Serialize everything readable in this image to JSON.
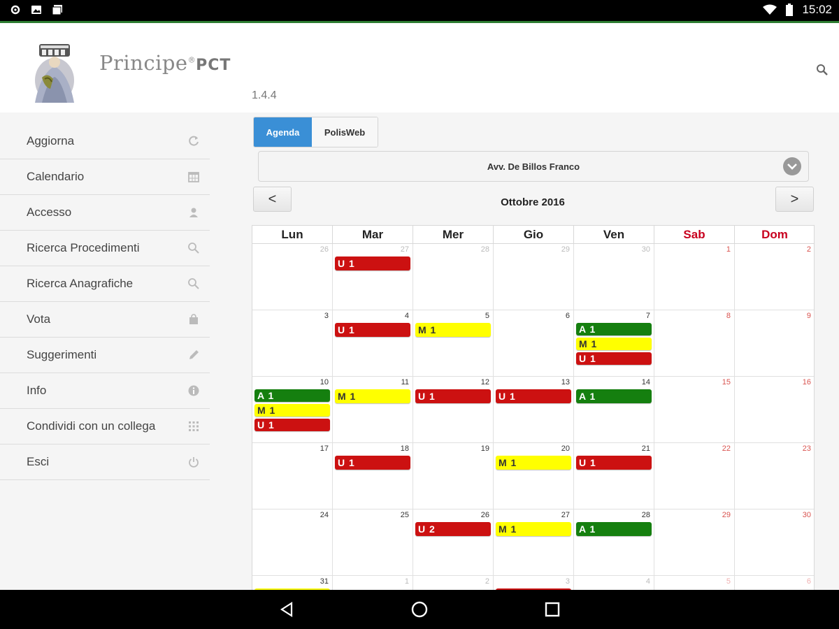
{
  "status_bar": {
    "time": "15:02",
    "left_icons": [
      "settings-sync-icon",
      "image-icon",
      "photo-stack-icon"
    ],
    "right_icons": [
      "wifi-icon",
      "battery-icon"
    ]
  },
  "header": {
    "brand_name": "Principe",
    "brand_reg": "®",
    "brand_suffix": "PCT",
    "version": "1.4.4"
  },
  "sidebar": {
    "items": [
      {
        "label": "Aggiorna",
        "icon": "refresh-icon"
      },
      {
        "label": "Calendario",
        "icon": "calendar-icon"
      },
      {
        "label": "Accesso",
        "icon": "user-icon"
      },
      {
        "label": "Ricerca Procedimenti",
        "icon": "search-icon"
      },
      {
        "label": "Ricerca Anagrafiche",
        "icon": "search-icon"
      },
      {
        "label": "Vota",
        "icon": "bag-icon"
      },
      {
        "label": "Suggerimenti",
        "icon": "pencil-icon"
      },
      {
        "label": "Info",
        "icon": "info-icon"
      },
      {
        "label": "Condividi con un collega",
        "icon": "grid-icon"
      },
      {
        "label": "Esci",
        "icon": "power-icon"
      }
    ]
  },
  "tabs": {
    "agenda": "Agenda",
    "polisweb": "PolisWeb"
  },
  "lawyer_select": {
    "value": "Avv. De Billos Franco"
  },
  "calendar": {
    "prev_label": "<",
    "next_label": ">",
    "month_title": "Ottobre 2016",
    "weekdays": [
      "Lun",
      "Mar",
      "Mer",
      "Gio",
      "Ven",
      "Sab",
      "Dom"
    ],
    "colors": {
      "red": "#cc1111",
      "yellow": "#ffff00",
      "green": "#157f0f",
      "weekend": "#c8001e",
      "accent": "#3a8fd6"
    },
    "weeks": [
      [
        {
          "n": "26",
          "other": true
        },
        {
          "n": "27",
          "other": true,
          "events": [
            {
              "label": "U 1",
              "color": "red"
            }
          ]
        },
        {
          "n": "28",
          "other": true
        },
        {
          "n": "29",
          "other": true
        },
        {
          "n": "30",
          "other": true
        },
        {
          "n": "1"
        },
        {
          "n": "2"
        }
      ],
      [
        {
          "n": "3"
        },
        {
          "n": "4",
          "events": [
            {
              "label": "U 1",
              "color": "red"
            }
          ]
        },
        {
          "n": "5",
          "events": [
            {
              "label": "M 1",
              "color": "yellow"
            }
          ]
        },
        {
          "n": "6"
        },
        {
          "n": "7",
          "events": [
            {
              "label": "A 1",
              "color": "green"
            },
            {
              "label": "M 1",
              "color": "yellow"
            },
            {
              "label": "U 1",
              "color": "red"
            }
          ]
        },
        {
          "n": "8"
        },
        {
          "n": "9"
        }
      ],
      [
        {
          "n": "10",
          "events": [
            {
              "label": "A 1",
              "color": "green"
            },
            {
              "label": "M 1",
              "color": "yellow"
            },
            {
              "label": "U 1",
              "color": "red"
            }
          ]
        },
        {
          "n": "11",
          "events": [
            {
              "label": "M 1",
              "color": "yellow"
            }
          ]
        },
        {
          "n": "12",
          "events": [
            {
              "label": "U 1",
              "color": "red"
            }
          ]
        },
        {
          "n": "13",
          "events": [
            {
              "label": "U 1",
              "color": "red"
            }
          ]
        },
        {
          "n": "14",
          "events": [
            {
              "label": "A 1",
              "color": "green"
            }
          ]
        },
        {
          "n": "15"
        },
        {
          "n": "16"
        }
      ],
      [
        {
          "n": "17"
        },
        {
          "n": "18",
          "events": [
            {
              "label": "U 1",
              "color": "red"
            }
          ]
        },
        {
          "n": "19"
        },
        {
          "n": "20",
          "events": [
            {
              "label": "M 1",
              "color": "yellow"
            }
          ]
        },
        {
          "n": "21",
          "events": [
            {
              "label": "U 1",
              "color": "red"
            }
          ]
        },
        {
          "n": "22"
        },
        {
          "n": "23"
        }
      ],
      [
        {
          "n": "24"
        },
        {
          "n": "25"
        },
        {
          "n": "26",
          "events": [
            {
              "label": "U 2",
              "color": "red"
            }
          ]
        },
        {
          "n": "27",
          "events": [
            {
              "label": "M 1",
              "color": "yellow"
            }
          ]
        },
        {
          "n": "28",
          "events": [
            {
              "label": "A 1",
              "color": "green"
            }
          ]
        },
        {
          "n": "29"
        },
        {
          "n": "30"
        }
      ],
      [
        {
          "n": "31",
          "events": [
            {
              "label": "",
              "color": "yellow"
            }
          ]
        },
        {
          "n": "1",
          "other": true
        },
        {
          "n": "2",
          "other": true
        },
        {
          "n": "3",
          "other": true,
          "events": [
            {
              "label": "",
              "color": "red"
            }
          ]
        },
        {
          "n": "4",
          "other": true
        },
        {
          "n": "5",
          "other": true
        },
        {
          "n": "6",
          "other": true
        }
      ]
    ]
  },
  "nav_bar": {
    "buttons": [
      "back-icon",
      "home-icon",
      "recents-icon"
    ]
  }
}
